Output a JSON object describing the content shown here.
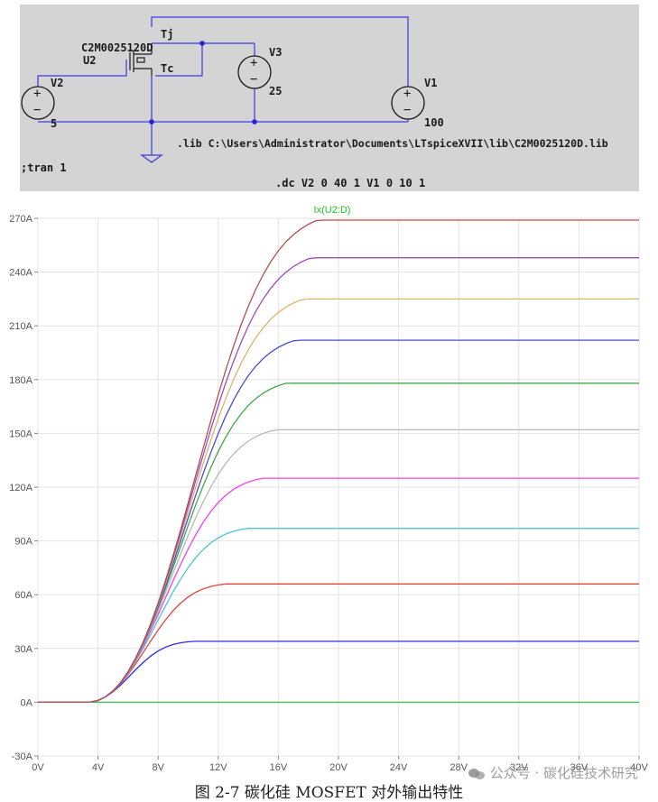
{
  "schematic": {
    "mosfet_model": "C2M0025120D",
    "mosfet_ref": "U2",
    "pin_tj": "Tj",
    "pin_tc": "Tc",
    "v2_name": "V2",
    "v2_value": "5",
    "v3_name": "V3",
    "v3_value": "25",
    "v1_name": "V1",
    "v1_value": "100",
    "lib_directive": ".lib C:\\Users\\Administrator\\Documents\\LTspiceXVII\\lib\\C2M0025120D.lib",
    "tran_directive": ";tran 1",
    "dc_directive": ".dc V2 0 40 1 V1 0 10 1",
    "colors": {
      "background": "#d3d3d3",
      "wire": "#3a3ae0",
      "node": "#2121d8"
    }
  },
  "chart_data": {
    "type": "line",
    "title": "Ix(U2:D)",
    "x_tick_labels": [
      "0V",
      "4V",
      "8V",
      "12V",
      "16V",
      "20V",
      "24V",
      "28V",
      "32V",
      "36V",
      "40V"
    ],
    "y_tick_labels": [
      "-30A",
      "0A",
      "30A",
      "60A",
      "90A",
      "120A",
      "150A",
      "180A",
      "210A",
      "240A",
      "270A"
    ],
    "xlim": [
      0,
      40
    ],
    "ylim": [
      -30,
      270
    ],
    "grid": true,
    "x": [
      0,
      1,
      2,
      3,
      3.5,
      4,
      4.5,
      5,
      5.5,
      6,
      6.5,
      7,
      7.5,
      8,
      8.5,
      9,
      9.5,
      10,
      10.5,
      11,
      11.5,
      12,
      12.5,
      13,
      13.5,
      14,
      14.5,
      15,
      15.5,
      16,
      16.5,
      17,
      17.5,
      18,
      18.5,
      19,
      19.5,
      20,
      20.5,
      21,
      21.5,
      22,
      22.5,
      23,
      23.5,
      24,
      24.5,
      25,
      25.5,
      26,
      27,
      28,
      30,
      32,
      34,
      36,
      38,
      40
    ],
    "series": [
      {
        "color": "#2ecc40",
        "plateau": 0
      },
      {
        "color": "#2a2ae6",
        "plateau": 34
      },
      {
        "color": "#e8433a",
        "plateau": 66
      },
      {
        "color": "#4fc6cc",
        "plateau": 97
      },
      {
        "color": "#f040f0",
        "plateau": 125
      },
      {
        "color": "#b8b8b8",
        "plateau": 152
      },
      {
        "color": "#3fa84a",
        "plateau": 178
      },
      {
        "color": "#4a4ad6",
        "plateau": 202
      },
      {
        "color": "#d9b46a",
        "plateau": 225
      },
      {
        "color": "#a04ab8",
        "plateau": 248
      },
      {
        "color": "#b05050",
        "plateau": 269
      }
    ]
  },
  "caption": "图 2-7 碳化硅 MOSFET 对外输出特性",
  "watermark": "公众号 · 碳化硅技术研究"
}
